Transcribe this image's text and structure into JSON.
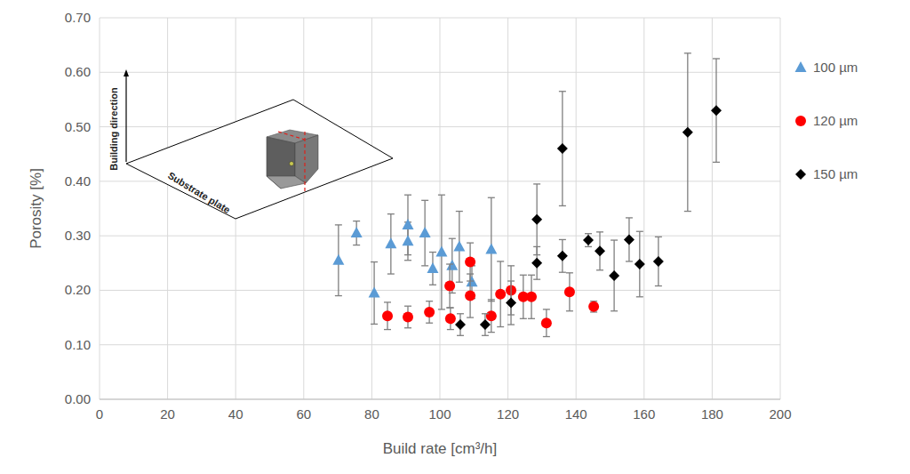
{
  "chart_data": {
    "type": "scatter",
    "x_label": "Build rate [cm³/h]",
    "y_label": "Porosity  [%]",
    "annotations": [
      "Building direction",
      "Substrate plate"
    ],
    "xlim": [
      0,
      200
    ],
    "xticks": [
      0,
      20,
      40,
      60,
      80,
      100,
      120,
      140,
      160,
      180,
      200
    ],
    "ylim": [
      0,
      0.7
    ],
    "yticks": [
      {
        "value": 0,
        "label": "0.00"
      },
      {
        "value": 0.1,
        "label": "0.10"
      },
      {
        "value": 0.2,
        "label": "0.20"
      },
      {
        "value": 0.3,
        "label": "0.30"
      },
      {
        "value": 0.4,
        "label": "0.40"
      },
      {
        "value": 0.5,
        "label": "0.50"
      },
      {
        "value": 0.6,
        "label": "0.60"
      },
      {
        "value": 0.7,
        "label": "0.70"
      }
    ],
    "grid": true,
    "legend": "right",
    "series": [
      {
        "name": "100 µm",
        "color": "#5b9bd5",
        "marker": "triangle",
        "x": [
          70.2,
          75.5,
          80.7,
          85.6,
          90.6,
          90.6,
          95.6,
          97.9,
          100.5,
          103.6,
          105.7,
          109.4,
          115.1
        ],
        "values": [
          0.255,
          0.305,
          0.195,
          0.285,
          0.32,
          0.29,
          0.305,
          0.24,
          0.27,
          0.245,
          0.28,
          0.215,
          0.275
        ],
        "errors": [
          0.065,
          0.022,
          0.057,
          0.055,
          0.055,
          0.035,
          0.06,
          0.03,
          0.105,
          0.05,
          0.065,
          0.03,
          0.095
        ]
      },
      {
        "name": "120 µm",
        "color": "#ff0000",
        "marker": "circle",
        "x": [
          84.6,
          90.6,
          96.9,
          103.1,
          102.9,
          108.9,
          108.9,
          115.1,
          117.8,
          120.9,
          124.5,
          126.9,
          131.3,
          138.1,
          145.2
        ],
        "values": [
          0.153,
          0.151,
          0.16,
          0.148,
          0.208,
          0.252,
          0.19,
          0.153,
          0.193,
          0.2,
          0.188,
          0.188,
          0.14,
          0.197,
          0.17
        ],
        "errors": [
          0.025,
          0.02,
          0.02,
          0.02,
          0.04,
          0.035,
          0.04,
          0.03,
          0.06,
          0.045,
          0.04,
          0.04,
          0.025,
          0.035,
          0.01
        ]
      },
      {
        "name": "150 µm",
        "color": "#000000",
        "marker": "diamond",
        "x": [
          106.0,
          113.3,
          120.9,
          128.5,
          128.5,
          136.0,
          136.0,
          143.6,
          147.0,
          151.2,
          155.6,
          158.7,
          164.2,
          172.8,
          181.2
        ],
        "values": [
          0.137,
          0.137,
          0.177,
          0.33,
          0.25,
          0.46,
          0.263,
          0.292,
          0.272,
          0.227,
          0.293,
          0.248,
          0.253,
          0.49,
          0.53
        ],
        "errors": [
          0.02,
          0.02,
          0.04,
          0.065,
          0.03,
          0.105,
          0.03,
          0.012,
          0.035,
          0.065,
          0.04,
          0.06,
          0.045,
          0.145,
          0.095
        ]
      }
    ]
  }
}
